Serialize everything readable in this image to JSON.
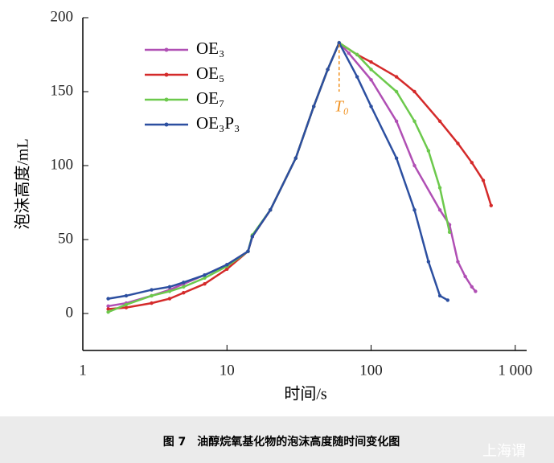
{
  "chart_data": {
    "type": "line",
    "xlabel": "时间/s",
    "ylabel": "泡沫高度/mL",
    "xscale": "log",
    "xlim": [
      1,
      1200
    ],
    "ylim": [
      -25,
      200
    ],
    "xticks": [
      1,
      10,
      100,
      {
        "value": 1000,
        "label": "1 000"
      }
    ],
    "yticks": [
      0,
      50,
      100,
      150,
      200
    ],
    "legend": "upper left",
    "annotation": {
      "text": "T₀",
      "color": "#f0901e",
      "x": 60,
      "y": [
        150,
        182
      ]
    },
    "series": [
      {
        "name": "OE₃",
        "color": "#b04fb4",
        "x": [
          1.5,
          2,
          3,
          4,
          5,
          7,
          10,
          14,
          15,
          20,
          30,
          40,
          50,
          60,
          70,
          100,
          150,
          200,
          300,
          350,
          400,
          450,
          500,
          530
        ],
        "values": [
          5,
          7,
          12,
          16,
          20,
          26,
          33,
          42,
          52,
          70,
          105,
          140,
          165,
          183,
          176,
          158,
          130,
          100,
          70,
          60,
          35,
          25,
          18,
          15
        ]
      },
      {
        "name": "OE₅",
        "color": "#d42a2a",
        "x": [
          1.5,
          2,
          3,
          4,
          5,
          7,
          10,
          14,
          15,
          20,
          30,
          40,
          50,
          60,
          80,
          100,
          150,
          200,
          300,
          400,
          500,
          600,
          680
        ],
        "values": [
          3,
          4,
          7,
          10,
          14,
          20,
          30,
          42,
          52,
          70,
          105,
          140,
          165,
          183,
          175,
          170,
          160,
          150,
          130,
          115,
          102,
          90,
          73
        ]
      },
      {
        "name": "OE₇",
        "color": "#6cc94c",
        "x": [
          1.5,
          2,
          3,
          4,
          5,
          7,
          10,
          14,
          15,
          20,
          30,
          40,
          50,
          60,
          80,
          100,
          150,
          200,
          250,
          300,
          350
        ],
        "values": [
          1,
          6,
          12,
          15,
          18,
          24,
          32,
          42,
          53,
          70,
          105,
          140,
          165,
          183,
          175,
          165,
          150,
          130,
          110,
          85,
          55
        ]
      },
      {
        "name": "OE₃P₃",
        "color": "#2c4fa0",
        "x": [
          1.5,
          2,
          3,
          4,
          5,
          7,
          10,
          14,
          15,
          20,
          30,
          40,
          50,
          60,
          80,
          100,
          150,
          200,
          250,
          300,
          340
        ],
        "values": [
          10,
          12,
          16,
          18,
          21,
          26,
          33,
          42,
          52,
          70,
          105,
          140,
          165,
          183,
          160,
          140,
          105,
          70,
          35,
          12,
          9
        ]
      }
    ]
  },
  "caption": "图 7　油醇烷氧基化物的泡沫高度随时间变化图",
  "watermark": "上海谓"
}
